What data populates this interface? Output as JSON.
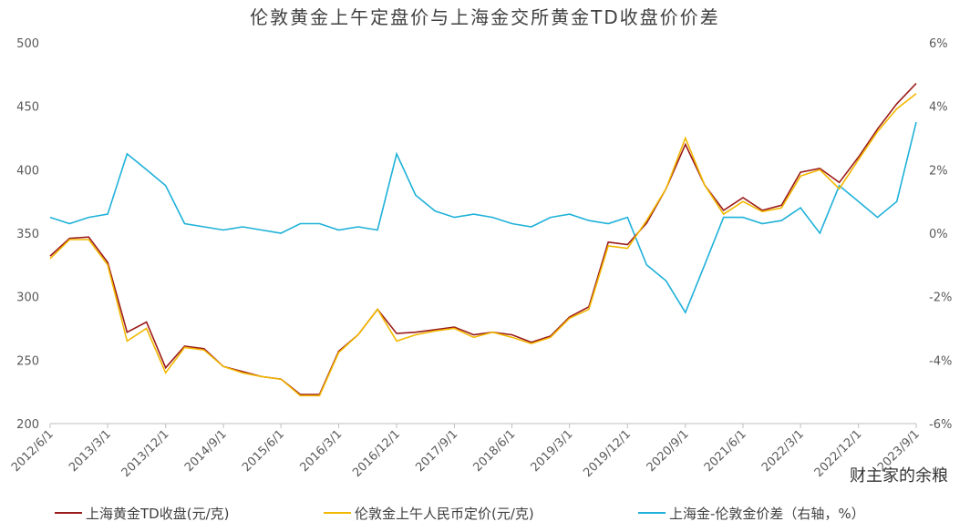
{
  "chart_data": {
    "type": "line",
    "title": "伦敦黄金上午定盘价与上海金交所黄金TD收盘价价差",
    "watermark": "财主家的余粮",
    "x": [
      "2012/6/1",
      "2012/9/1",
      "2012/12/1",
      "2013/3/1",
      "2013/6/1",
      "2013/9/1",
      "2013/12/1",
      "2014/3/1",
      "2014/6/1",
      "2014/9/1",
      "2014/12/1",
      "2015/3/1",
      "2015/6/1",
      "2015/9/1",
      "2015/12/1",
      "2016/3/1",
      "2016/6/1",
      "2016/9/1",
      "2016/12/1",
      "2017/3/1",
      "2017/6/1",
      "2017/9/1",
      "2017/12/1",
      "2018/3/1",
      "2018/6/1",
      "2018/9/1",
      "2018/12/1",
      "2019/3/1",
      "2019/6/1",
      "2019/9/1",
      "2019/12/1",
      "2020/3/1",
      "2020/6/1",
      "2020/9/1",
      "2020/12/1",
      "2021/3/1",
      "2021/6/1",
      "2021/9/1",
      "2021/12/1",
      "2022/3/1",
      "2022/6/1",
      "2022/9/1",
      "2022/12/1",
      "2023/3/1",
      "2023/6/1",
      "2023/9/1"
    ],
    "series": [
      {
        "name": "上海黄金TD收盘(元/克)",
        "color": "#9b1b1b",
        "axis": "y",
        "values": [
          332,
          346,
          347,
          327,
          272,
          280,
          244,
          261,
          259,
          245,
          241,
          237,
          235,
          223,
          223,
          257,
          270,
          290,
          271,
          272,
          274,
          276,
          270,
          272,
          270,
          264,
          269,
          284,
          292,
          343,
          341,
          358,
          385,
          420,
          388,
          368,
          378,
          368,
          372,
          398,
          401,
          390,
          410,
          432,
          452,
          468
        ]
      },
      {
        "name": "伦敦金上午人民币定价(元/克)",
        "color": "#f2b800",
        "axis": "y",
        "values": [
          330,
          345,
          345,
          325,
          265,
          275,
          240,
          260,
          258,
          245,
          240,
          237,
          235,
          222,
          222,
          256,
          270,
          290,
          265,
          270,
          273,
          275,
          268,
          272,
          268,
          263,
          268,
          283,
          290,
          340,
          338,
          360,
          385,
          425,
          388,
          365,
          375,
          367,
          370,
          395,
          400,
          385,
          408,
          430,
          448,
          460
        ]
      },
      {
        "name": "上海金-伦敦金价差（右轴，%）",
        "color": "#1fb1d9",
        "axis": "y2",
        "values": [
          0.5,
          0.3,
          0.5,
          0.6,
          2.5,
          2.0,
          1.5,
          0.3,
          0.2,
          0.1,
          0.2,
          0.1,
          0.0,
          0.3,
          0.3,
          0.1,
          0.2,
          0.1,
          2.5,
          1.2,
          0.7,
          0.5,
          0.6,
          0.5,
          0.3,
          0.2,
          0.5,
          0.6,
          0.4,
          0.3,
          0.5,
          -1.0,
          -1.5,
          -2.5,
          -1.0,
          0.5,
          0.5,
          0.3,
          0.4,
          0.8,
          0.0,
          1.5,
          1.0,
          0.5,
          1.0,
          3.5
        ]
      }
    ],
    "xticks": [
      "2012/6/1",
      "2013/3/1",
      "2013/12/1",
      "2014/9/1",
      "2015/6/1",
      "2016/3/1",
      "2016/12/1",
      "2017/9/1",
      "2018/6/1",
      "2019/3/1",
      "2019/12/1",
      "2020/9/1",
      "2021/6/1",
      "2022/3/1",
      "2022/12/1",
      "2023/9/1"
    ],
    "ylim": [
      200,
      500
    ],
    "yticks": [
      200,
      250,
      300,
      350,
      400,
      450,
      500
    ],
    "y2lim": [
      -6,
      6
    ],
    "y2ticks": [
      {
        "value": -6,
        "label": "-6%"
      },
      {
        "value": -4,
        "label": "-4%"
      },
      {
        "value": -2,
        "label": "-2%"
      },
      {
        "value": 0,
        "label": "0%"
      },
      {
        "value": 2,
        "label": "2%"
      },
      {
        "value": 4,
        "label": "4%"
      },
      {
        "value": 6,
        "label": "6%"
      }
    ]
  }
}
